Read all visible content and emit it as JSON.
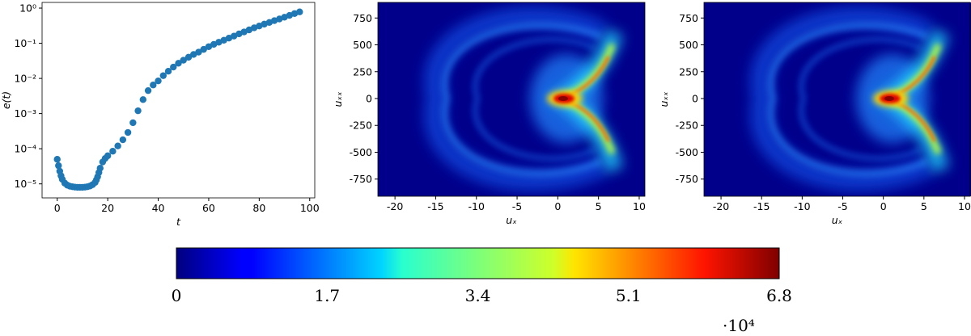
{
  "chart_data": [
    {
      "type": "scatter",
      "xlabel": "t",
      "ylabel": "e(t)",
      "color": "#1f77b4",
      "log_y": true,
      "x": [
        0,
        0.5,
        1,
        1.5,
        2,
        3,
        4,
        5,
        6,
        7,
        8,
        9,
        10,
        11,
        12,
        13,
        14,
        15,
        15.5,
        16,
        16.5,
        17,
        18,
        19,
        20,
        22,
        24,
        26,
        28,
        30,
        32,
        34,
        36,
        38,
        40,
        42,
        44,
        46,
        48,
        50,
        52,
        54,
        56,
        58,
        60,
        62,
        64,
        66,
        68,
        70,
        72,
        74,
        76,
        78,
        80,
        82,
        84,
        86,
        88,
        90,
        92,
        94,
        96
      ],
      "values": [
        5e-05,
        3.3e-05,
        2.3e-05,
        1.7e-05,
        1.35e-05,
        1.05e-05,
        9.2e-06,
        8.6e-06,
        8.3e-06,
        8.1e-06,
        8e-06,
        8e-06,
        8e-06,
        8.1e-06,
        8.3e-06,
        8.7e-06,
        9.5e-06,
        1.1e-05,
        1.3e-05,
        1.6e-05,
        2.1e-05,
        2.8e-05,
        4.2e-05,
        5.3e-05,
        6.3e-05,
        8.5e-05,
        0.00012,
        0.00018,
        0.00029,
        0.00055,
        0.0012,
        0.0025,
        0.0045,
        0.0065,
        0.0085,
        0.012,
        0.016,
        0.021,
        0.027,
        0.033,
        0.04,
        0.048,
        0.056,
        0.067,
        0.08,
        0.093,
        0.107,
        0.122,
        0.14,
        0.16,
        0.185,
        0.21,
        0.24,
        0.275,
        0.31,
        0.35,
        0.39,
        0.44,
        0.49,
        0.55,
        0.62,
        0.7,
        0.78
      ],
      "xlim": [
        -6,
        102
      ],
      "xticks": [
        0,
        20,
        40,
        60,
        80,
        100
      ],
      "ylim": [
        4e-06,
        1.45
      ],
      "yticks": [
        {
          "value": 1e-05,
          "label": "10⁻⁵"
        },
        {
          "value": 0.0001,
          "label": "10⁻⁴"
        },
        {
          "value": 0.001,
          "label": "10⁻³"
        },
        {
          "value": 0.01,
          "label": "10⁻²"
        },
        {
          "value": 0.1,
          "label": "10⁻¹"
        },
        {
          "value": 1,
          "label": "10⁰"
        }
      ]
    },
    {
      "type": "heatmap",
      "xlabel": "uₓ",
      "ylabel": "uₓₓ",
      "xlim": [
        -22.1,
        10.7
      ],
      "xticks": [
        -20,
        -15,
        -10,
        -5,
        0,
        5,
        10
      ],
      "ylim": [
        -910,
        895
      ],
      "yticks": [
        -750,
        -500,
        -250,
        0,
        250,
        500,
        750
      ]
    },
    {
      "type": "heatmap",
      "xlabel": "uₓ",
      "ylabel": "uₓₓ",
      "xlim": [
        -22.1,
        10.7
      ],
      "xticks": [
        -20,
        -15,
        -10,
        -5,
        0,
        5,
        10
      ],
      "ylim": [
        -910,
        895
      ],
      "yticks": [
        -750,
        -500,
        -250,
        0,
        250,
        500,
        750
      ]
    },
    {
      "type": "colorbar",
      "colormap": "jet",
      "clim": [
        0,
        6.8
      ],
      "ticks": [
        0,
        1.7,
        3.4,
        5.1,
        6.8
      ],
      "offset_label": "·10⁴"
    }
  ]
}
